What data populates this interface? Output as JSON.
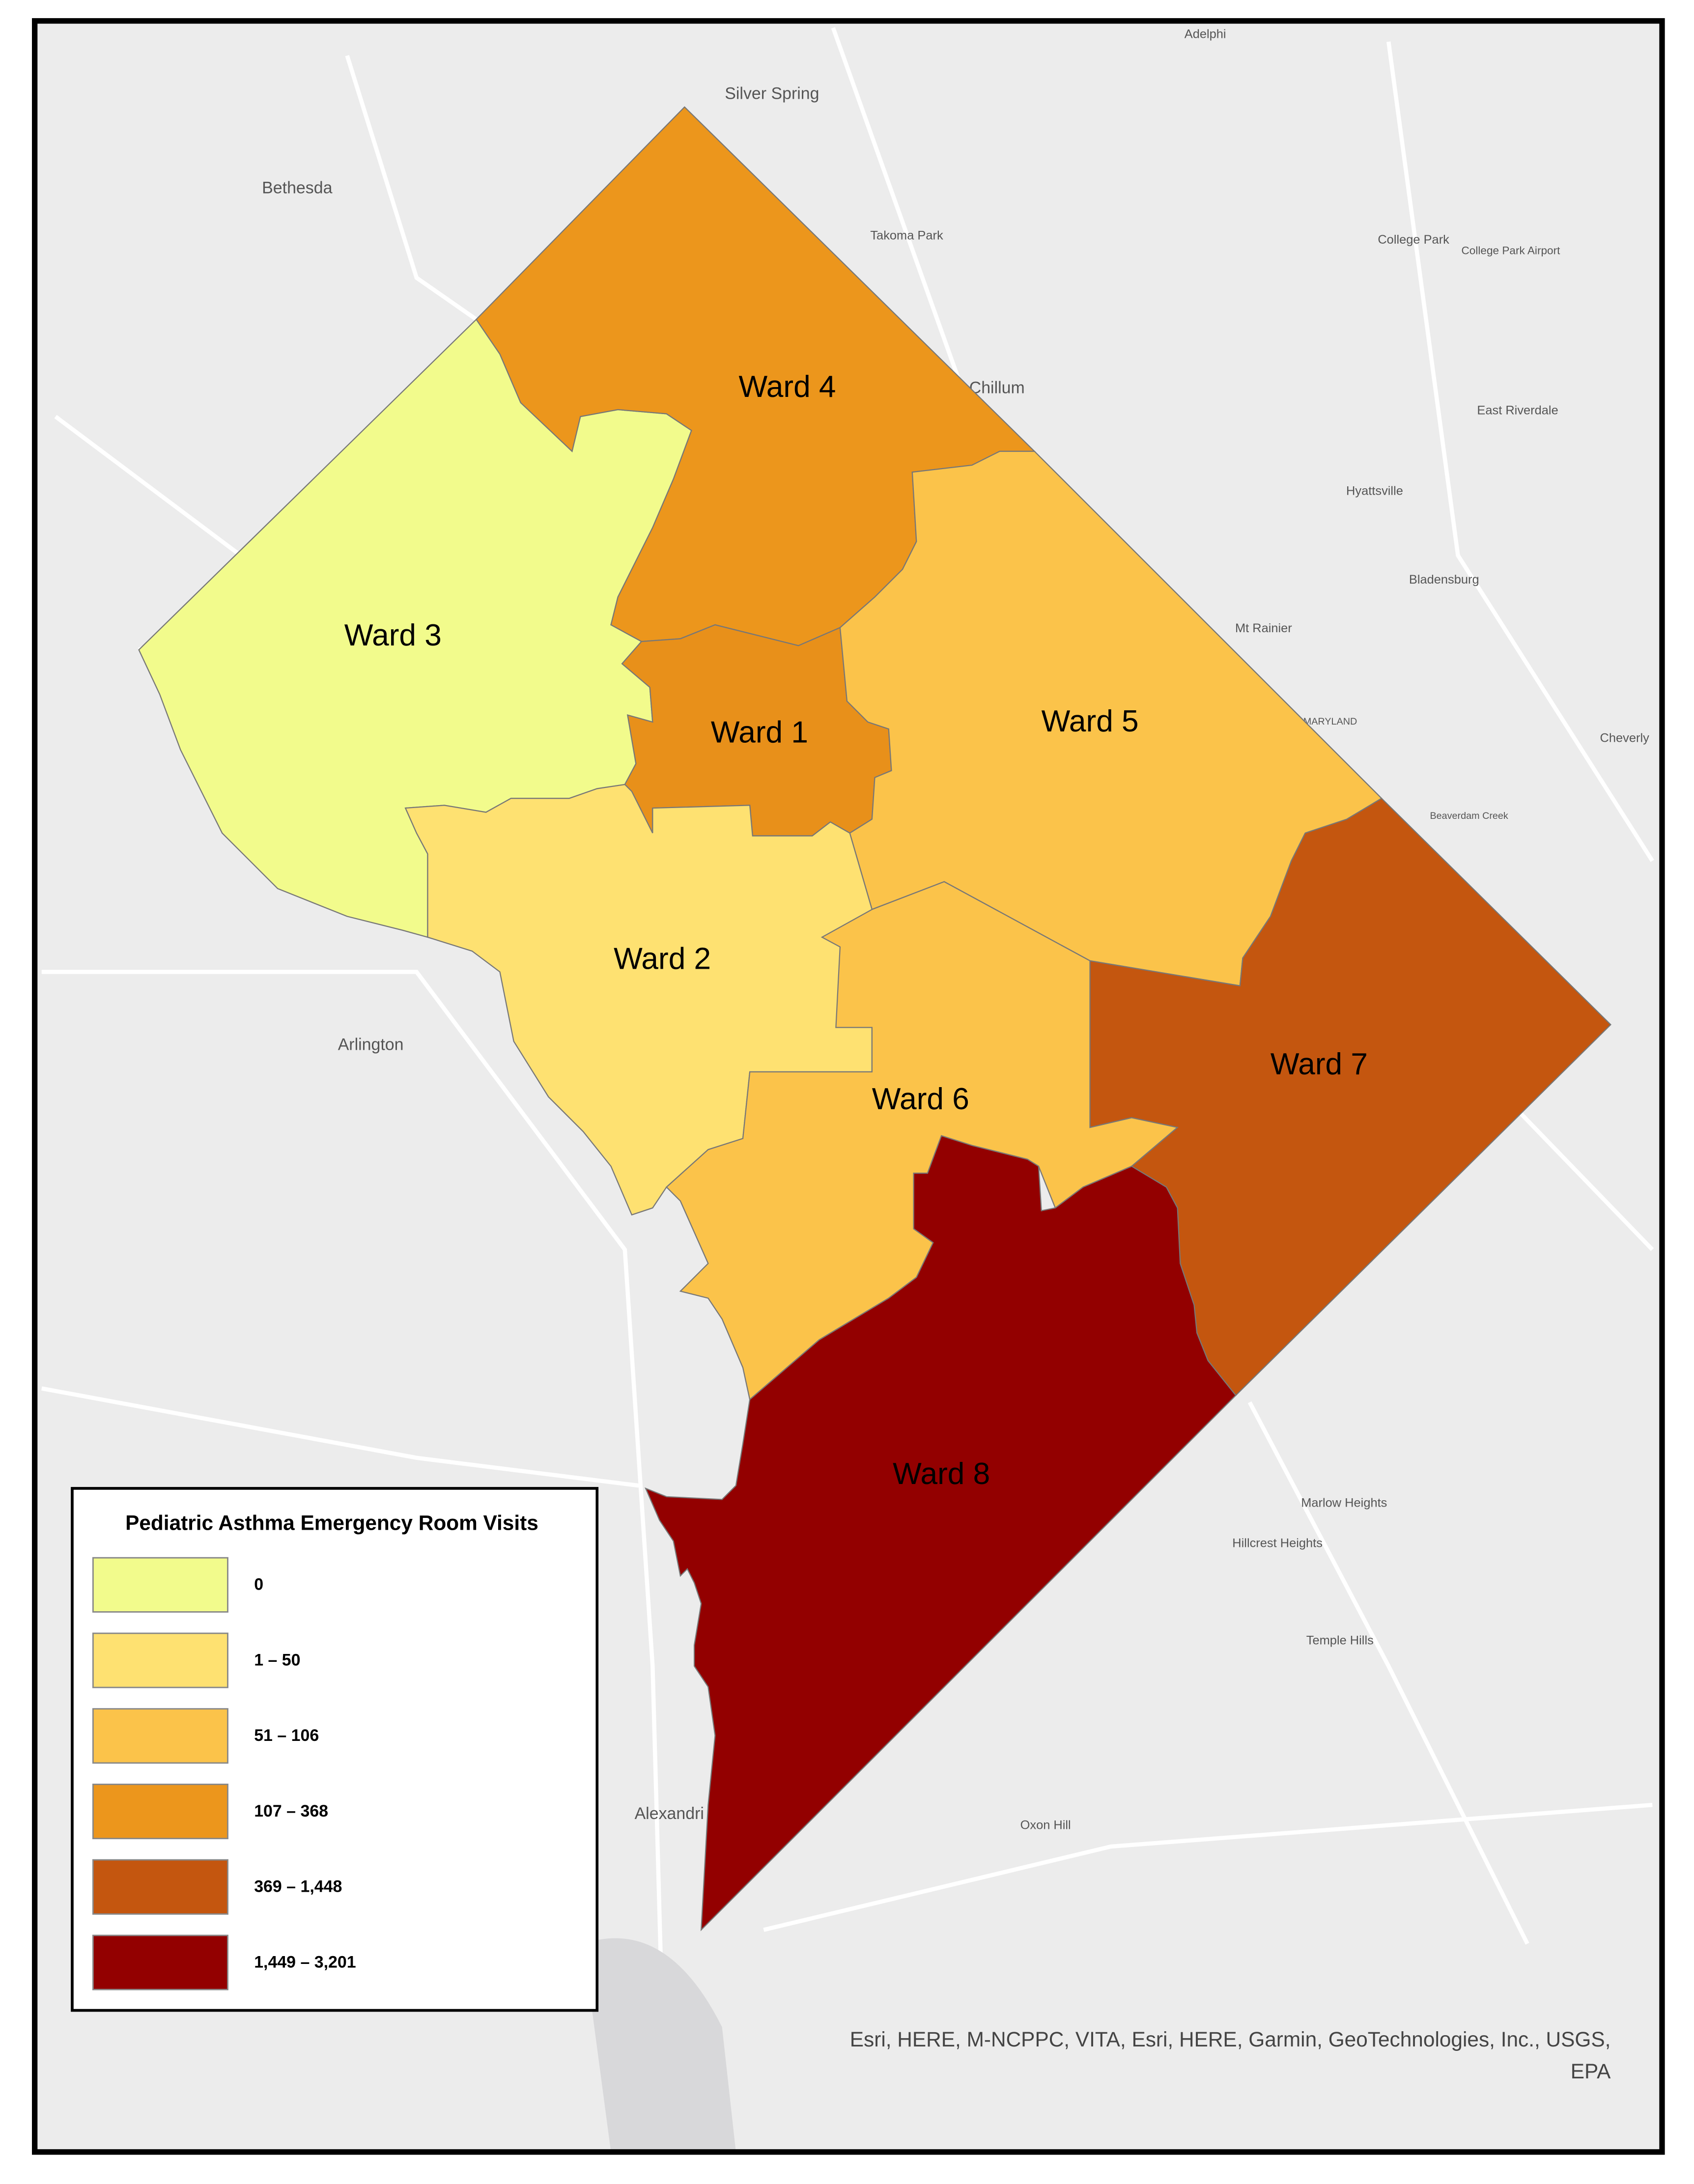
{
  "map": {
    "wards": [
      {
        "label": "Ward 3",
        "color": "#f2fb8c"
      },
      {
        "label": "Ward 4",
        "color": "#ec961c"
      },
      {
        "label": "Ward 1",
        "color": "#e8901a"
      },
      {
        "label": "Ward 5",
        "color": "#fbc34a"
      },
      {
        "label": "Ward 2",
        "color": "#fee171"
      },
      {
        "label": "Ward 6",
        "color": "#fbc34a"
      },
      {
        "label": "Ward 7",
        "color": "#c4560f"
      },
      {
        "label": "Ward 8",
        "color": "#930000"
      }
    ],
    "place_labels": [
      "Adelphi",
      "Silver Spring",
      "Bethesda",
      "Takoma Park",
      "College Park",
      "College Park Airport",
      "Chillum",
      "East Riverdale",
      "Hyattsville",
      "Bladensburg",
      "Mt Rainier",
      "Cheverly",
      "Arlington",
      "Marlow Heights",
      "Hillcrest Heights",
      "Temple Hills",
      "Alexandri",
      "Oxon Hill",
      "MARYLAND",
      "Beaverdam Creek"
    ]
  },
  "legend": {
    "title": "Pediatric Asthma Emergency Room Visits",
    "classes": [
      {
        "label": "0",
        "color": "#f2fb8c"
      },
      {
        "label": "1 – 50",
        "color": "#fee171"
      },
      {
        "label": "51 – 106",
        "color": "#fbc34a"
      },
      {
        "label": "107 – 368",
        "color": "#ec961c"
      },
      {
        "label": "369 – 1,448",
        "color": "#c4560f"
      },
      {
        "label": "1,449 – 3,201",
        "color": "#930000"
      }
    ]
  },
  "attribution": [
    "Esri, HERE, M-NCPPC, VITA, Esri, HERE, Garmin, GeoTechnologies, Inc., USGS,",
    "EPA"
  ]
}
